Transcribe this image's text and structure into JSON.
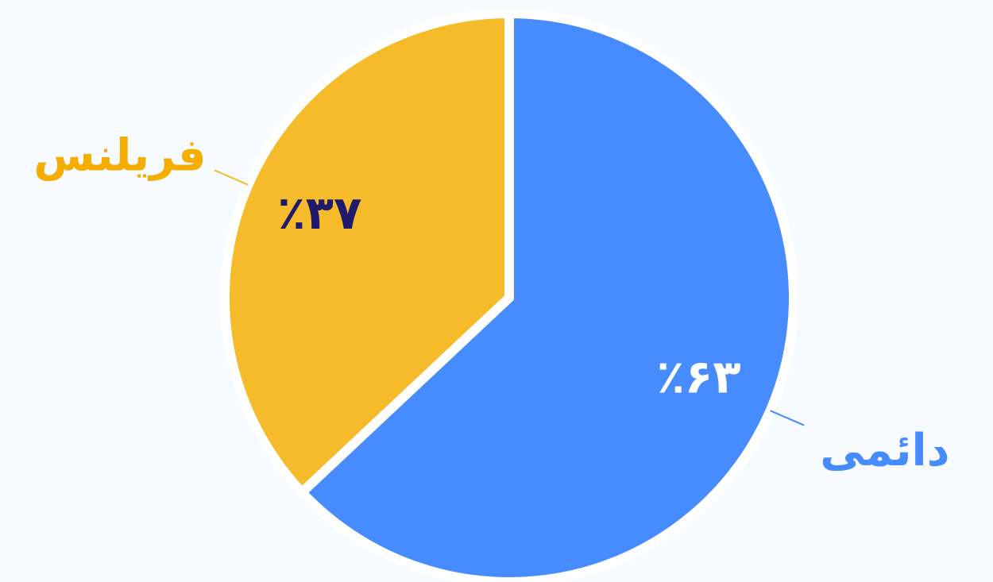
{
  "chart_data": {
    "type": "pie",
    "categories": [
      "دائمی",
      "فریلنس"
    ],
    "values": [
      63,
      37
    ],
    "value_labels": [
      "٪۶۳",
      "٪۳۷"
    ],
    "colors": [
      "#468bff",
      "#f6bb2b"
    ],
    "label_colors": [
      "#468bff",
      "#f5ad00"
    ],
    "value_label_colors": [
      "#ffffff",
      "#1f1a6b"
    ]
  }
}
